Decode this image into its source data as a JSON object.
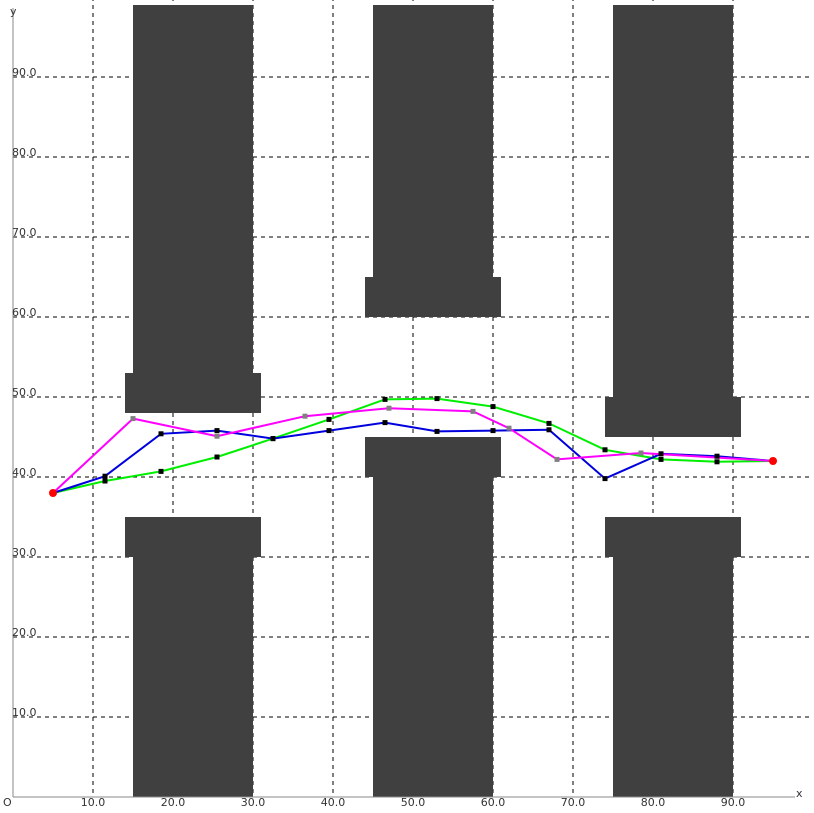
{
  "chart_data": {
    "type": "line",
    "xlabel": "x",
    "ylabel": "y",
    "origin_label": "O",
    "xlim": [
      0,
      100
    ],
    "ylim": [
      0,
      100
    ],
    "grid": true,
    "x_ticks": [
      10,
      20,
      30,
      40,
      50,
      60,
      70,
      80,
      90
    ],
    "y_ticks": [
      10,
      20,
      30,
      40,
      50,
      60,
      70,
      80,
      90
    ],
    "x_tick_labels": [
      "10.0",
      "20.0",
      "30.0",
      "40.0",
      "50.0",
      "60.0",
      "70.0",
      "80.0",
      "90.0"
    ],
    "y_tick_labels": [
      "10.0",
      "20.0",
      "30.0",
      "40.0",
      "50.0",
      "60.0",
      "70.0",
      "80.0",
      "90.0"
    ],
    "obstacles": [
      [
        [
          15,
          99
        ],
        [
          30,
          99
        ],
        [
          30,
          53
        ],
        [
          31,
          53
        ],
        [
          31,
          48
        ],
        [
          14,
          48
        ],
        [
          14,
          53
        ],
        [
          15,
          53
        ]
      ],
      [
        [
          45,
          99
        ],
        [
          60,
          99
        ],
        [
          60,
          65
        ],
        [
          61,
          65
        ],
        [
          61,
          60
        ],
        [
          44,
          60
        ],
        [
          44,
          65
        ],
        [
          45,
          65
        ]
      ],
      [
        [
          75,
          99
        ],
        [
          90,
          99
        ],
        [
          90,
          50
        ],
        [
          91,
          50
        ],
        [
          91,
          45
        ],
        [
          74,
          45
        ],
        [
          74,
          50
        ],
        [
          75,
          50
        ]
      ],
      [
        [
          15,
          0
        ],
        [
          30,
          0
        ],
        [
          30,
          30
        ],
        [
          31,
          30
        ],
        [
          31,
          35
        ],
        [
          14,
          35
        ],
        [
          14,
          30
        ],
        [
          15,
          30
        ]
      ],
      [
        [
          45,
          0
        ],
        [
          60,
          0
        ],
        [
          60,
          40
        ],
        [
          61,
          40
        ],
        [
          61,
          45
        ],
        [
          44,
          45
        ],
        [
          44,
          40
        ],
        [
          45,
          40
        ]
      ],
      [
        [
          75,
          0
        ],
        [
          90,
          0
        ],
        [
          90,
          30
        ],
        [
          91,
          30
        ],
        [
          91,
          35
        ],
        [
          74,
          35
        ],
        [
          74,
          30
        ],
        [
          75,
          30
        ]
      ]
    ],
    "obstacle_color": "#404040",
    "series": [
      {
        "color": "#00ee00",
        "marker_color": "#000000",
        "x": [
          5,
          11.5,
          18.5,
          25.5,
          32.5,
          39.5,
          46.5,
          53,
          60,
          67,
          74,
          81,
          88,
          95
        ],
        "y": [
          38,
          39.5,
          40.7,
          42.5,
          44.8,
          47.2,
          49.7,
          49.8,
          48.8,
          46.7,
          43.4,
          42.2,
          41.9,
          42
        ]
      },
      {
        "color": "#0000dd",
        "marker_color": "#000000",
        "x": [
          5,
          11.5,
          18.5,
          25.5,
          32.5,
          39.5,
          46.5,
          53,
          60,
          67,
          74,
          81,
          88,
          95
        ],
        "y": [
          38,
          40.1,
          45.4,
          45.8,
          44.8,
          45.8,
          46.8,
          45.7,
          45.8,
          45.9,
          39.8,
          42.9,
          42.6,
          42
        ]
      },
      {
        "color": "#ff00ff",
        "marker_color": "#808080",
        "x": [
          5,
          15,
          25.5,
          36.5,
          47,
          57.5,
          62,
          68,
          78.5,
          95
        ],
        "y": [
          38,
          47.3,
          45.1,
          47.6,
          48.6,
          48.2,
          46.1,
          42.2,
          43,
          42
        ]
      }
    ],
    "endpoints": [
      {
        "x": 5,
        "y": 38
      },
      {
        "x": 95,
        "y": 42
      }
    ],
    "endpoint_color": "#ff0000"
  }
}
